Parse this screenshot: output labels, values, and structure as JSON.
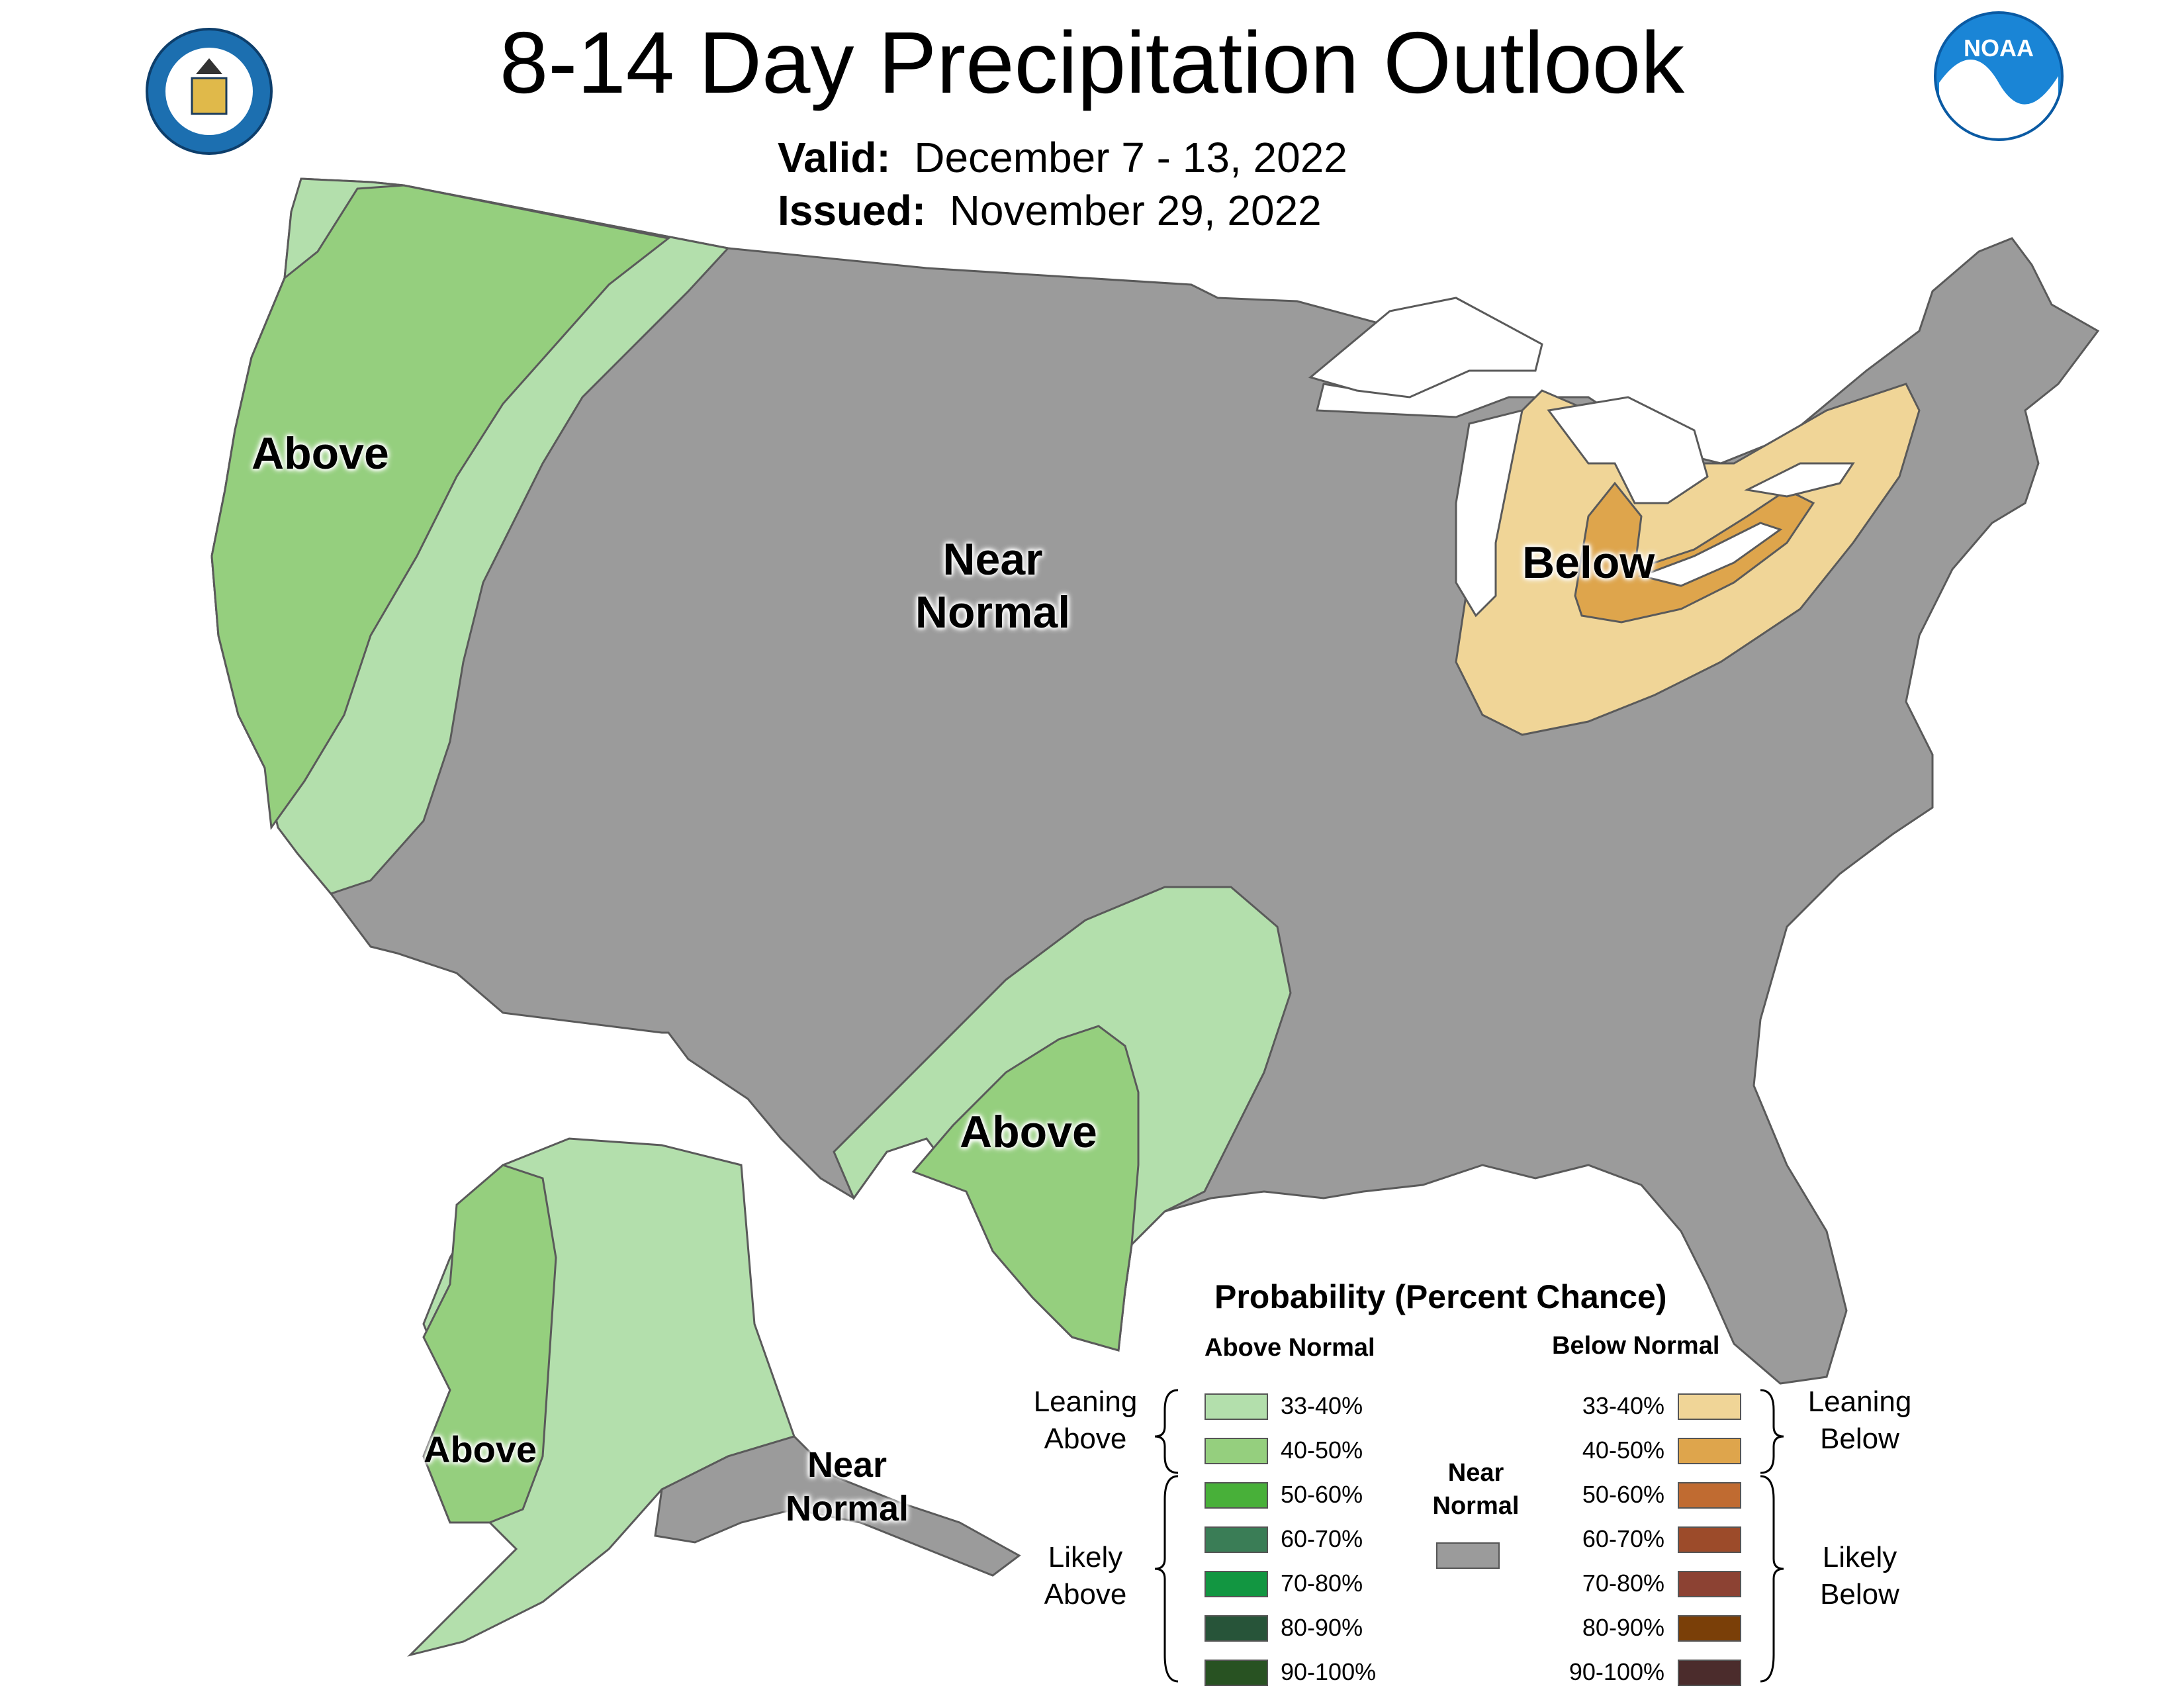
{
  "header": {
    "title": "8-14 Day Precipitation Outlook",
    "valid_label": "Valid:",
    "valid_value": "December 7 - 13, 2022",
    "issued_label": "Issued:",
    "issued_value": "November 29, 2022"
  },
  "logos": {
    "left": "DEPARTMENT OF COMMERCE · UNITED STATES OF AMERICA",
    "right": "NOAA"
  },
  "regions": {
    "west_coast": "Above",
    "central": "Near Normal",
    "great_lakes": "Below",
    "texas": "Above",
    "alaska_west": "Above",
    "alaska_southeast": "Near Normal"
  },
  "legend": {
    "title": "Probability (Percent Chance)",
    "above_header": "Above Normal",
    "below_header": "Below Normal",
    "near_normal_label": "Near Normal",
    "leaning_above": "Leaning Above",
    "likely_above": "Likely Above",
    "leaning_below": "Leaning Below",
    "likely_below": "Likely Below",
    "above_bins": [
      {
        "label": "33-40%",
        "color": "#b3dfac"
      },
      {
        "label": "40-50%",
        "color": "#95cf7e"
      },
      {
        "label": "50-60%",
        "color": "#48b039"
      },
      {
        "label": "60-70%",
        "color": "#3a7d56"
      },
      {
        "label": "70-80%",
        "color": "#129641"
      },
      {
        "label": "80-90%",
        "color": "#275439"
      },
      {
        "label": "90-100%",
        "color": "#285222"
      }
    ],
    "below_bins": [
      {
        "label": "33-40%",
        "color": "#f0d597"
      },
      {
        "label": "40-50%",
        "color": "#dea54c"
      },
      {
        "label": "50-60%",
        "color": "#c06b31"
      },
      {
        "label": "60-70%",
        "color": "#9c4b2a"
      },
      {
        "label": "70-80%",
        "color": "#8c4233"
      },
      {
        "label": "80-90%",
        "color": "#7a3f08"
      },
      {
        "label": "90-100%",
        "color": "#4b2c2c"
      }
    ],
    "near_normal_color": "#9b9b9b"
  },
  "colors": {
    "near_normal": "#9b9b9b",
    "border": "#5a5a5a",
    "water": "#ffffff"
  }
}
